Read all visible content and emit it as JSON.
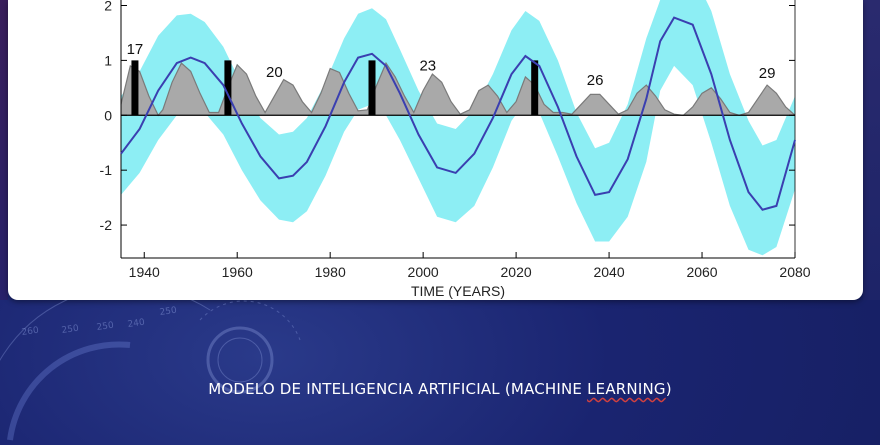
{
  "slide": {
    "caption_main": "MODELO DE INTELIGENCIA ARTIFICIAL (MACHINE ",
    "caption_word": "LEARNING",
    "caption_end": ")"
  },
  "colors": {
    "band": "#8deef4",
    "mean_line": "#3a3fb0",
    "cycle_fill": "#a9a9a9",
    "cycle_line": "#7a7a7a",
    "bar": "#000000",
    "background": "#1a2470"
  },
  "decor_text": {
    "dial": [
      "260",
      "250",
      "250",
      "240",
      "250"
    ]
  },
  "chart_data": {
    "type": "line",
    "xlabel": "TIME (YEARS)",
    "ylabel": "",
    "xlim": [
      1935,
      2080
    ],
    "ylim": [
      -2.6,
      2.1
    ],
    "x_ticks": [
      1940,
      1960,
      1980,
      2000,
      2020,
      2040,
      2060,
      2080
    ],
    "y_ticks": [
      -2,
      -1,
      0,
      1,
      2
    ],
    "series": [
      {
        "kind": "mean",
        "x": [
          1935,
          1939,
          1943,
          1947,
          1950,
          1953,
          1957,
          1961,
          1965,
          1969,
          1972,
          1975,
          1979,
          1983,
          1986,
          1989,
          1992,
          1995,
          1999,
          2003,
          2007,
          2011,
          2015,
          2019,
          2022,
          2025,
          2029,
          2033,
          2037,
          2040,
          2044,
          2048,
          2051,
          2054,
          2058,
          2062,
          2066,
          2070,
          2073,
          2076,
          2080
        ],
        "values": [
          -0.7,
          -0.25,
          0.45,
          0.95,
          1.05,
          0.95,
          0.55,
          -0.15,
          -0.75,
          -1.15,
          -1.1,
          -0.85,
          -0.2,
          0.6,
          1.05,
          1.12,
          0.9,
          0.4,
          -0.35,
          -0.95,
          -1.05,
          -0.7,
          -0.05,
          0.75,
          1.08,
          0.9,
          0.15,
          -0.75,
          -1.45,
          -1.4,
          -0.8,
          0.3,
          1.35,
          1.78,
          1.65,
          0.75,
          -0.45,
          -1.4,
          -1.72,
          -1.65,
          -0.45
        ]
      },
      {
        "kind": "band_upper",
        "x": [
          1935,
          1939,
          1943,
          1947,
          1950,
          1953,
          1957,
          1961,
          1965,
          1969,
          1972,
          1975,
          1979,
          1983,
          1986,
          1989,
          1992,
          1995,
          1999,
          2003,
          2007,
          2011,
          2015,
          2019,
          2022,
          2025,
          2029,
          2033,
          2037,
          2040,
          2044,
          2048,
          2051,
          2054,
          2058,
          2062,
          2066,
          2070,
          2073,
          2076,
          2080
        ],
        "values": [
          0.35,
          0.8,
          1.45,
          1.82,
          1.85,
          1.7,
          1.25,
          0.55,
          -0.05,
          -0.35,
          -0.3,
          -0.05,
          0.6,
          1.4,
          1.85,
          1.95,
          1.75,
          1.2,
          0.45,
          -0.15,
          -0.25,
          0.1,
          0.75,
          1.55,
          1.9,
          1.72,
          1.0,
          0.05,
          -0.6,
          -0.5,
          0.2,
          1.4,
          2.1,
          2.6,
          2.6,
          1.9,
          0.75,
          -0.1,
          -0.55,
          -0.45,
          0.35
        ]
      },
      {
        "kind": "band_lower",
        "x": [
          1935,
          1939,
          1943,
          1947,
          1950,
          1953,
          1957,
          1961,
          1965,
          1969,
          1972,
          1975,
          1979,
          1983,
          1986,
          1989,
          1992,
          1995,
          1999,
          2003,
          2007,
          2011,
          2015,
          2019,
          2022,
          2025,
          2029,
          2033,
          2037,
          2040,
          2044,
          2048,
          2051,
          2054,
          2058,
          2062,
          2066,
          2070,
          2073,
          2076,
          2080
        ],
        "values": [
          -1.45,
          -1.05,
          -0.45,
          0.0,
          0.15,
          0.05,
          -0.35,
          -1.0,
          -1.55,
          -1.9,
          -1.95,
          -1.75,
          -1.1,
          -0.3,
          0.1,
          0.2,
          0.0,
          -0.45,
          -1.15,
          -1.85,
          -1.95,
          -1.65,
          -0.95,
          -0.1,
          0.25,
          0.05,
          -0.75,
          -1.6,
          -2.3,
          -2.3,
          -1.85,
          -0.85,
          0.45,
          0.9,
          0.55,
          -0.5,
          -1.65,
          -2.45,
          -2.55,
          -2.4,
          -1.35
        ]
      },
      {
        "kind": "solar_cycles",
        "x": [
          1935,
          1937,
          1939,
          1941,
          1943,
          1944,
          1946,
          1948,
          1950,
          1952,
          1954,
          1956,
          1958,
          1960,
          1962,
          1964,
          1966,
          1968,
          1970,
          1972,
          1974,
          1976,
          1978,
          1980,
          1982,
          1984,
          1986,
          1988,
          1990,
          1992,
          1994,
          1996,
          1998,
          2000,
          2002,
          2004,
          2006,
          2008,
          2010,
          2012,
          2014,
          2016,
          2018,
          2020,
          2022,
          2024,
          2026,
          2028,
          2030,
          2032,
          2034,
          2036,
          2038,
          2040,
          2042,
          2044,
          2046,
          2048,
          2050,
          2052,
          2054,
          2056,
          2058,
          2060,
          2062,
          2064,
          2066,
          2068,
          2070,
          2072,
          2074,
          2076,
          2078,
          2080
        ],
        "values": [
          0.2,
          0.9,
          0.8,
          0.35,
          0.0,
          0.1,
          0.6,
          0.95,
          0.8,
          0.4,
          0.05,
          0.05,
          0.5,
          0.92,
          0.75,
          0.35,
          0.05,
          0.35,
          0.65,
          0.55,
          0.25,
          0.05,
          0.4,
          0.85,
          0.78,
          0.4,
          0.08,
          0.1,
          0.55,
          0.95,
          0.7,
          0.35,
          0.05,
          0.45,
          0.75,
          0.6,
          0.25,
          0.02,
          0.1,
          0.45,
          0.55,
          0.35,
          0.05,
          0.25,
          0.7,
          0.55,
          0.2,
          0.05,
          0.05,
          0.02,
          0.2,
          0.38,
          0.38,
          0.2,
          0.02,
          0.1,
          0.4,
          0.55,
          0.35,
          0.1,
          0.02,
          0.0,
          0.15,
          0.4,
          0.5,
          0.3,
          0.05,
          0.0,
          0.05,
          0.3,
          0.55,
          0.4,
          0.15,
          0.0
        ]
      }
    ],
    "events": [
      {
        "x": 1938,
        "y": 1.0
      },
      {
        "x": 1958,
        "y": 1.0
      },
      {
        "x": 1989,
        "y": 1.0
      },
      {
        "x": 2024,
        "y": 1.0
      }
    ],
    "annotations": [
      {
        "label": "17",
        "x": 1938,
        "y": 1.12
      },
      {
        "label": "20",
        "x": 1968,
        "y": 0.7
      },
      {
        "label": "23",
        "x": 2001,
        "y": 0.82
      },
      {
        "label": "26",
        "x": 2037,
        "y": 0.55
      },
      {
        "label": "29",
        "x": 2074,
        "y": 0.68
      }
    ]
  }
}
